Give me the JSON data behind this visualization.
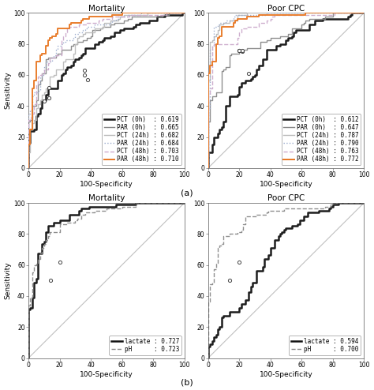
{
  "panels": [
    {
      "title": "Mortality",
      "row": 0,
      "col": 0,
      "curves": [
        {
          "label": "PCT (0h)  : 0.619",
          "color": "#111111",
          "lw": 1.8,
          "ls": "-",
          "auc": 0.619,
          "seed": 1,
          "opt": [
            38,
            57
          ]
        },
        {
          "label": "PAR (0h)  : 0.665",
          "color": "#888888",
          "lw": 1.0,
          "ls": "-",
          "auc": 0.665,
          "seed": 2,
          "opt": [
            13,
            45
          ]
        },
        {
          "label": "PCT (24h) : 0.682",
          "color": "#bbbbbb",
          "lw": 1.0,
          "ls": "-",
          "auc": 0.682,
          "seed": 3,
          "opt": [
            13,
            52
          ]
        },
        {
          "label": "PAR (24h) : 0.684",
          "color": "#99aacc",
          "lw": 1.0,
          "ls": ":",
          "auc": 0.684,
          "seed": 4,
          "opt": [
            36,
            60
          ]
        },
        {
          "label": "PCT (48h) : 0.703",
          "color": "#ccaacc",
          "lw": 1.0,
          "ls": "--",
          "auc": 0.703,
          "seed": 5,
          "opt": [
            36,
            63
          ]
        },
        {
          "label": "PAR (48h) : 0.710",
          "color": "#e87722",
          "lw": 1.4,
          "ls": "-",
          "auc": 0.71,
          "seed": 6,
          "opt": [
            10,
            43
          ]
        }
      ]
    },
    {
      "title": "Poor CPC",
      "row": 0,
      "col": 1,
      "curves": [
        {
          "label": "PCT (0h)  : 0.612",
          "color": "#111111",
          "lw": 1.8,
          "ls": "-",
          "auc": 0.612,
          "seed": 11,
          "opt": [
            26,
            61
          ]
        },
        {
          "label": "PAR (0h)  : 0.647",
          "color": "#888888",
          "lw": 1.0,
          "ls": "-",
          "auc": 0.647,
          "seed": 12,
          "opt": [
            22,
            75
          ]
        },
        {
          "label": "PCT (24h) : 0.787",
          "color": "#bbbbbb",
          "lw": 1.0,
          "ls": "-",
          "auc": 0.787,
          "seed": 13,
          "opt": [
            20,
            76
          ]
        },
        {
          "label": "PAR (24h) : 0.790",
          "color": "#99aacc",
          "lw": 1.0,
          "ls": ":",
          "auc": 0.79,
          "seed": 14,
          "opt": [
            22,
            76
          ]
        },
        {
          "label": "PCT (48h) : 0.763",
          "color": "#ccaacc",
          "lw": 1.0,
          "ls": "--",
          "auc": 0.763,
          "seed": 15,
          "opt": [
            20,
            76
          ]
        },
        {
          "label": "PAR (48h) : 0.772",
          "color": "#e87722",
          "lw": 1.4,
          "ls": "-",
          "auc": 0.772,
          "seed": 16,
          "opt": [
            20,
            76
          ]
        }
      ]
    },
    {
      "title": "Mortality",
      "row": 1,
      "col": 0,
      "curves": [
        {
          "label": "lactate : 0.727",
          "color": "#111111",
          "lw": 1.8,
          "ls": "-",
          "auc": 0.727,
          "seed": 21,
          "opt": [
            20,
            62
          ]
        },
        {
          "label": "pH      : 0.723",
          "color": "#888888",
          "lw": 1.0,
          "ls": "--",
          "auc": 0.723,
          "seed": 22,
          "opt": [
            14,
            50
          ]
        }
      ]
    },
    {
      "title": "Poor CPC",
      "row": 1,
      "col": 1,
      "curves": [
        {
          "label": "lactate : 0.594",
          "color": "#111111",
          "lw": 1.8,
          "ls": "-",
          "auc": 0.594,
          "seed": 31,
          "opt": [
            20,
            62
          ]
        },
        {
          "label": "pH      : 0.700",
          "color": "#888888",
          "lw": 1.0,
          "ls": "--",
          "auc": 0.7,
          "seed": 32,
          "opt": [
            14,
            50
          ]
        }
      ]
    }
  ],
  "xlabel": "100-Specificity",
  "ylabel": "Sensitivity",
  "axis_ticks": [
    0,
    20,
    40,
    60,
    80,
    100
  ],
  "title_fontsize": 7.5,
  "label_fontsize": 6.5,
  "tick_fontsize": 5.5,
  "legend_fontsize": 5.5
}
